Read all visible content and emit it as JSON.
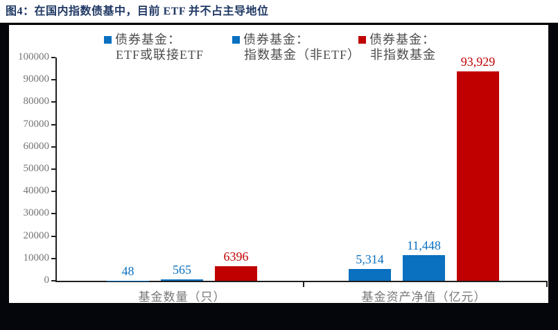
{
  "figure": {
    "title": "图4：在国内指数债基中，目前 ETF 并不占主导地位"
  },
  "colors": {
    "title_navy": "#1f3864",
    "series_blue": "#0a70c0",
    "series_red": "#c00000",
    "frame_border": "#04060b",
    "axis_line": "#1f1f1f",
    "axis_text_gray": "#747474"
  },
  "legend": {
    "items": [
      {
        "line1": "债券基金：",
        "line2": "ETF或联接ETF",
        "color": "#0a70c0"
      },
      {
        "line1": "债券基金：",
        "line2": "指数基金（非ETF）",
        "color": "#0a70c0"
      },
      {
        "line1": "债券基金：",
        "line2": "非指数基金",
        "color": "#c00000"
      }
    ]
  },
  "chart_data": {
    "type": "bar",
    "title": "图4：在国内指数债基中，目前 ETF 并不占主导地位",
    "categories": [
      "基金数量（只）",
      "基金资产净值（亿元）"
    ],
    "series": [
      {
        "name": "债券基金：ETF或联接ETF",
        "color": "#0a70c0",
        "values": [
          48,
          5314
        ],
        "value_labels": [
          "48",
          "5,314"
        ]
      },
      {
        "name": "债券基金：指数基金（非ETF）",
        "color": "#0a70c0",
        "values": [
          565,
          11448
        ],
        "value_labels": [
          "565",
          "11,448"
        ]
      },
      {
        "name": "债券基金：非指数基金",
        "color": "#c00000",
        "values": [
          6396,
          93929
        ],
        "value_labels": [
          "6396",
          "93,929"
        ]
      }
    ],
    "ylim": [
      0,
      100000
    ],
    "ytick_step": 10000,
    "ytick_labels": [
      "0",
      "10000",
      "20000",
      "30000",
      "40000",
      "50000",
      "60000",
      "70000",
      "80000",
      "90000",
      "100000"
    ],
    "legend_position": "top",
    "grid": false
  }
}
